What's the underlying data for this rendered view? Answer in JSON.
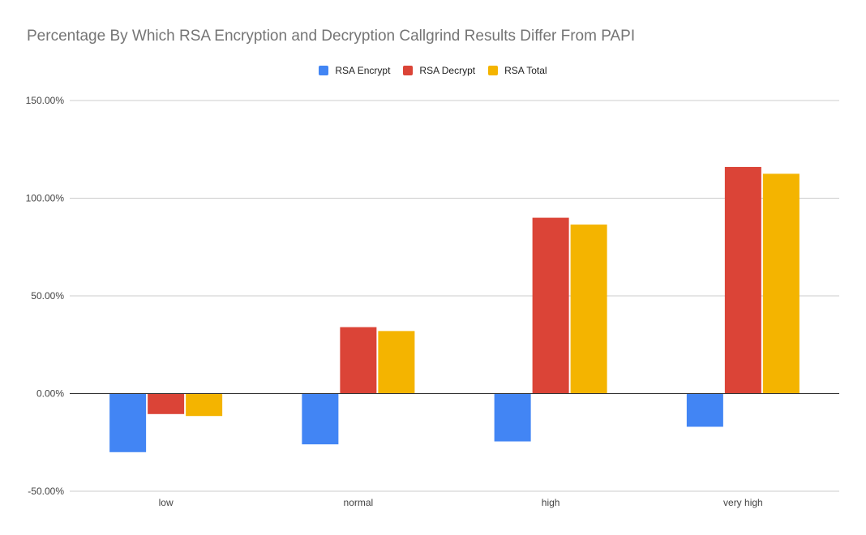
{
  "chart_data": {
    "type": "bar",
    "title": "Percentage By Which RSA Encryption and Decryption Callgrind Results Differ From PAPI",
    "xlabel": "",
    "ylabel": "",
    "categories": [
      "low",
      "normal",
      "high",
      "very high"
    ],
    "series": [
      {
        "name": "RSA Encrypt",
        "color": "#4285f4",
        "values": [
          -30,
          -26,
          -24.5,
          -17
        ]
      },
      {
        "name": "RSA Decrypt",
        "color": "#db4437",
        "values": [
          -10.5,
          34,
          90,
          116
        ]
      },
      {
        "name": "RSA Total",
        "color": "#f4b400",
        "values": [
          -11.5,
          32,
          86.5,
          112.5
        ]
      }
    ],
    "ylim": [
      -50,
      150
    ],
    "yticks": [
      -50,
      0,
      50,
      100,
      150
    ],
    "ytick_labels": [
      "-50.00%",
      "0.00%",
      "50.00%",
      "100.00%",
      "150.00%"
    ],
    "grid": true,
    "legend_position": "top"
  }
}
